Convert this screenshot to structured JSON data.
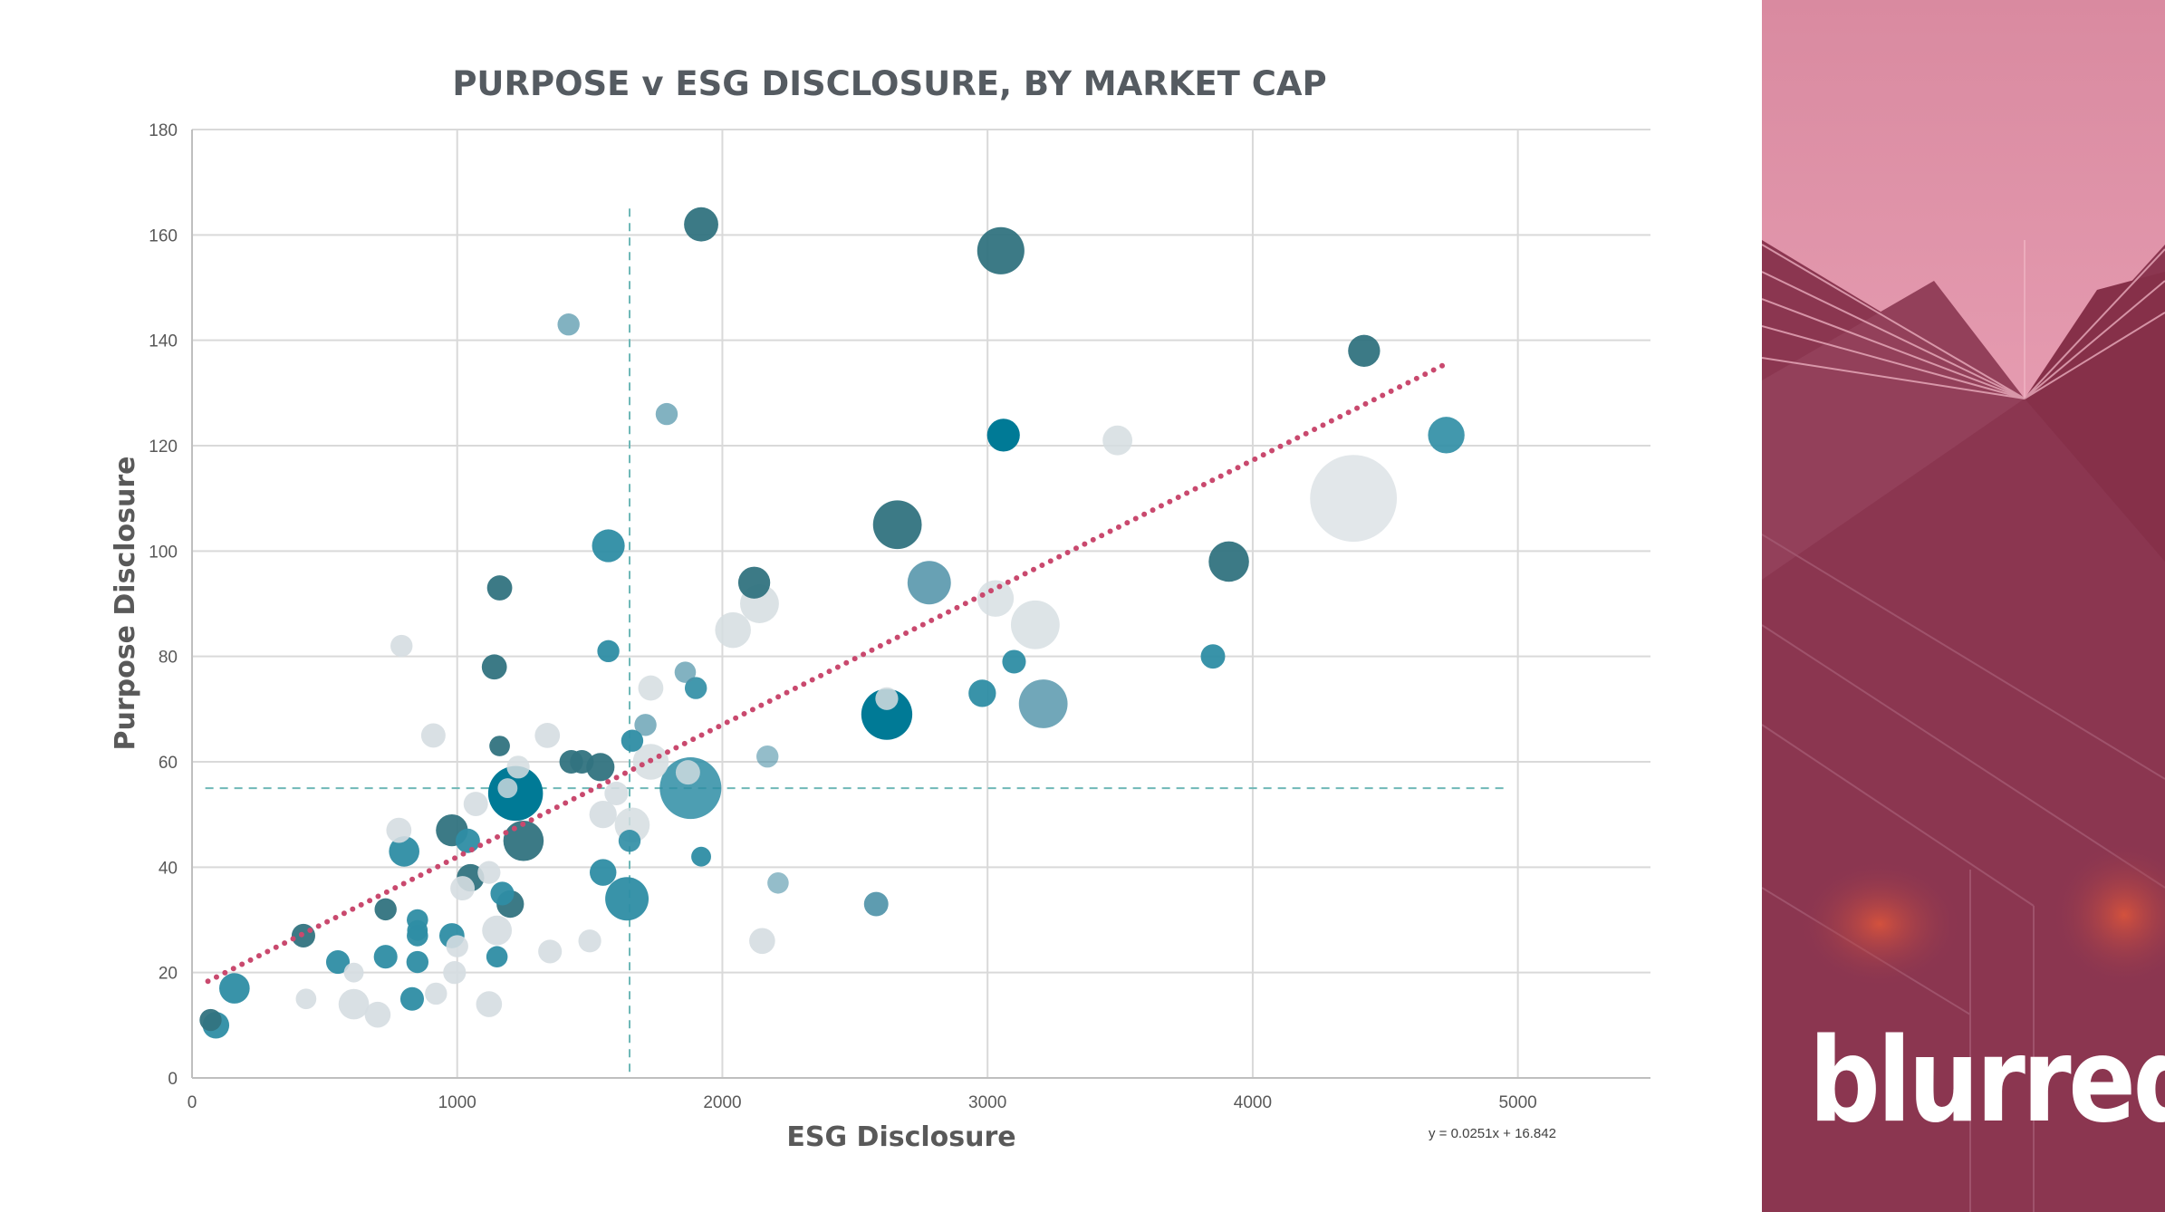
{
  "chart_data": {
    "type": "scatter",
    "subtype": "bubble",
    "title": "PURPOSE v ESG DISCLOSURE, BY MARKET CAP",
    "xlabel": "ESG Disclosure",
    "ylabel": "Purpose Disclosure",
    "xlim": [
      0,
      5500
    ],
    "ylim": [
      0,
      180
    ],
    "xticks": [
      "0",
      "1000",
      "2000",
      "3000",
      "4000",
      "5000"
    ],
    "yticks": [
      "0",
      "20",
      "40",
      "60",
      "80",
      "100",
      "120",
      "140",
      "160",
      "180"
    ],
    "grid": true,
    "legend": "none",
    "trendline": {
      "equation": "y = 0.0251x + 16.842",
      "slope": 0.0251,
      "intercept": 16.842,
      "x_range": [
        60,
        4730
      ],
      "color": "#c9496e",
      "style": "dotted"
    },
    "reference_lines": [
      {
        "orientation": "vertical",
        "x": 1650,
        "y_range": [
          0,
          165
        ],
        "color": "#6fb8b7"
      },
      {
        "orientation": "horizontal",
        "y": 55,
        "x_range": [
          50,
          4950
        ],
        "color": "#6fb8b7"
      }
    ],
    "palette": {
      "dark_teal": "#31737f",
      "teal": "#007a96",
      "mid_teal": "#2e8da4",
      "light_teal": "#4d91a7",
      "pale": "#d5dde1"
    },
    "points": [
      {
        "x": 1920,
        "y": 162,
        "size": 0.26,
        "color": "dark_teal",
        "opacity": 0.95
      },
      {
        "x": 3050,
        "y": 157,
        "size": 0.43,
        "color": "dark_teal",
        "opacity": 0.95
      },
      {
        "x": 1420,
        "y": 143,
        "size": 0.1,
        "color": "light_teal",
        "opacity": 0.7
      },
      {
        "x": 4420,
        "y": 138,
        "size": 0.23,
        "color": "dark_teal",
        "opacity": 0.95
      },
      {
        "x": 1790,
        "y": 126,
        "size": 0.1,
        "color": "light_teal",
        "opacity": 0.7
      },
      {
        "x": 3060,
        "y": 122,
        "size": 0.24,
        "color": "teal",
        "opacity": 1
      },
      {
        "x": 3490,
        "y": 121,
        "size": 0.2,
        "color": "pale",
        "opacity": 0.85
      },
      {
        "x": 4730,
        "y": 122,
        "size": 0.29,
        "color": "mid_teal",
        "opacity": 0.9
      },
      {
        "x": 4380,
        "y": 110,
        "size": 0.95,
        "color": "pale",
        "opacity": 0.7
      },
      {
        "x": 2660,
        "y": 105,
        "size": 0.45,
        "color": "dark_teal",
        "opacity": 0.95
      },
      {
        "x": 1570,
        "y": 101,
        "size": 0.24,
        "color": "mid_teal",
        "opacity": 0.95
      },
      {
        "x": 3910,
        "y": 98,
        "size": 0.34,
        "color": "dark_teal",
        "opacity": 0.95
      },
      {
        "x": 2120,
        "y": 94,
        "size": 0.23,
        "color": "dark_teal",
        "opacity": 0.95
      },
      {
        "x": 2780,
        "y": 94,
        "size": 0.38,
        "color": "light_teal",
        "opacity": 0.85
      },
      {
        "x": 1160,
        "y": 93,
        "size": 0.14,
        "color": "dark_teal",
        "opacity": 0.95
      },
      {
        "x": 3030,
        "y": 91,
        "size": 0.29,
        "color": "pale",
        "opacity": 0.8
      },
      {
        "x": 2140,
        "y": 90,
        "size": 0.32,
        "color": "pale",
        "opacity": 0.85
      },
      {
        "x": 2040,
        "y": 85,
        "size": 0.28,
        "color": "pale",
        "opacity": 0.85
      },
      {
        "x": 3180,
        "y": 86,
        "size": 0.45,
        "color": "pale",
        "opacity": 0.8
      },
      {
        "x": 790,
        "y": 82,
        "size": 0.1,
        "color": "pale",
        "opacity": 0.9
      },
      {
        "x": 1570,
        "y": 81,
        "size": 0.1,
        "color": "mid_teal",
        "opacity": 0.95
      },
      {
        "x": 3850,
        "y": 80,
        "size": 0.13,
        "color": "mid_teal",
        "opacity": 0.95
      },
      {
        "x": 3100,
        "y": 79,
        "size": 0.12,
        "color": "mid_teal",
        "opacity": 0.95
      },
      {
        "x": 1140,
        "y": 78,
        "size": 0.14,
        "color": "dark_teal",
        "opacity": 0.95
      },
      {
        "x": 1860,
        "y": 77,
        "size": 0.09,
        "color": "light_teal",
        "opacity": 0.7
      },
      {
        "x": 1730,
        "y": 74,
        "size": 0.14,
        "color": "pale",
        "opacity": 0.85
      },
      {
        "x": 1900,
        "y": 74,
        "size": 0.1,
        "color": "mid_teal",
        "opacity": 0.9
      },
      {
        "x": 2980,
        "y": 73,
        "size": 0.17,
        "color": "mid_teal",
        "opacity": 0.95
      },
      {
        "x": 3210,
        "y": 71,
        "size": 0.45,
        "color": "light_teal",
        "opacity": 0.8
      },
      {
        "x": 2620,
        "y": 69,
        "size": 0.48,
        "color": "teal",
        "opacity": 1
      },
      {
        "x": 2620,
        "y": 72,
        "size": 0.11,
        "color": "pale",
        "opacity": 0.85
      },
      {
        "x": 1710,
        "y": 67,
        "size": 0.1,
        "color": "light_teal",
        "opacity": 0.7
      },
      {
        "x": 910,
        "y": 65,
        "size": 0.13,
        "color": "pale",
        "opacity": 0.9
      },
      {
        "x": 1340,
        "y": 65,
        "size": 0.14,
        "color": "pale",
        "opacity": 0.9
      },
      {
        "x": 1660,
        "y": 64,
        "size": 0.1,
        "color": "mid_teal",
        "opacity": 0.95
      },
      {
        "x": 1160,
        "y": 63,
        "size": 0.08,
        "color": "dark_teal",
        "opacity": 0.95
      },
      {
        "x": 2170,
        "y": 61,
        "size": 0.1,
        "color": "light_teal",
        "opacity": 0.6
      },
      {
        "x": 1430,
        "y": 60,
        "size": 0.12,
        "color": "dark_teal",
        "opacity": 0.95
      },
      {
        "x": 1470,
        "y": 60,
        "size": 0.12,
        "color": "dark_teal",
        "opacity": 0.95
      },
      {
        "x": 1540,
        "y": 59,
        "size": 0.18,
        "color": "dark_teal",
        "opacity": 0.95
      },
      {
        "x": 1730,
        "y": 60,
        "size": 0.28,
        "color": "pale",
        "opacity": 0.85
      },
      {
        "x": 1880,
        "y": 55,
        "size": 0.62,
        "color": "mid_teal",
        "opacity": 0.85
      },
      {
        "x": 1870,
        "y": 58,
        "size": 0.13,
        "color": "pale",
        "opacity": 0.8
      },
      {
        "x": 1220,
        "y": 54,
        "size": 0.53,
        "color": "teal",
        "opacity": 1
      },
      {
        "x": 1230,
        "y": 59,
        "size": 0.11,
        "color": "pale",
        "opacity": 0.85
      },
      {
        "x": 1190,
        "y": 55,
        "size": 0.07,
        "color": "pale",
        "opacity": 0.8
      },
      {
        "x": 1600,
        "y": 54,
        "size": 0.12,
        "color": "pale",
        "opacity": 0.9
      },
      {
        "x": 1070,
        "y": 52,
        "size": 0.13,
        "color": "pale",
        "opacity": 0.9
      },
      {
        "x": 1660,
        "y": 48,
        "size": 0.27,
        "color": "pale",
        "opacity": 0.85
      },
      {
        "x": 1550,
        "y": 50,
        "size": 0.17,
        "color": "pale",
        "opacity": 0.9
      },
      {
        "x": 1650,
        "y": 45,
        "size": 0.1,
        "color": "mid_teal",
        "opacity": 0.9
      },
      {
        "x": 780,
        "y": 47,
        "size": 0.14,
        "color": "pale",
        "opacity": 0.9
      },
      {
        "x": 980,
        "y": 47,
        "size": 0.23,
        "color": "dark_teal",
        "opacity": 0.95
      },
      {
        "x": 1040,
        "y": 45,
        "size": 0.13,
        "color": "mid_teal",
        "opacity": 0.95
      },
      {
        "x": 1250,
        "y": 45,
        "size": 0.34,
        "color": "dark_teal",
        "opacity": 0.95
      },
      {
        "x": 800,
        "y": 43,
        "size": 0.21,
        "color": "mid_teal",
        "opacity": 0.95
      },
      {
        "x": 1120,
        "y": 39,
        "size": 0.11,
        "color": "pale",
        "opacity": 0.9
      },
      {
        "x": 1550,
        "y": 39,
        "size": 0.16,
        "color": "mid_teal",
        "opacity": 0.95
      },
      {
        "x": 1920,
        "y": 42,
        "size": 0.07,
        "color": "mid_teal",
        "opacity": 0.95
      },
      {
        "x": 1050,
        "y": 38,
        "size": 0.17,
        "color": "dark_teal",
        "opacity": 0.95
      },
      {
        "x": 1020,
        "y": 36,
        "size": 0.13,
        "color": "pale",
        "opacity": 0.9
      },
      {
        "x": 2210,
        "y": 37,
        "size": 0.09,
        "color": "light_teal",
        "opacity": 0.6
      },
      {
        "x": 1170,
        "y": 35,
        "size": 0.12,
        "color": "mid_teal",
        "opacity": 0.95
      },
      {
        "x": 1640,
        "y": 34,
        "size": 0.38,
        "color": "mid_teal",
        "opacity": 0.95
      },
      {
        "x": 1200,
        "y": 33,
        "size": 0.17,
        "color": "dark_teal",
        "opacity": 0.95
      },
      {
        "x": 2580,
        "y": 33,
        "size": 0.13,
        "color": "light_teal",
        "opacity": 0.9
      },
      {
        "x": 730,
        "y": 32,
        "size": 0.1,
        "color": "dark_teal",
        "opacity": 0.95
      },
      {
        "x": 850,
        "y": 30,
        "size": 0.09,
        "color": "mid_teal",
        "opacity": 0.95
      },
      {
        "x": 1150,
        "y": 28,
        "size": 0.2,
        "color": "pale",
        "opacity": 0.9
      },
      {
        "x": 850,
        "y": 28,
        "size": 0.08,
        "color": "mid_teal",
        "opacity": 0.95
      },
      {
        "x": 420,
        "y": 27,
        "size": 0.12,
        "color": "dark_teal",
        "opacity": 0.95
      },
      {
        "x": 850,
        "y": 27,
        "size": 0.09,
        "color": "mid_teal",
        "opacity": 0.95
      },
      {
        "x": 980,
        "y": 27,
        "size": 0.14,
        "color": "mid_teal",
        "opacity": 0.95
      },
      {
        "x": 1500,
        "y": 26,
        "size": 0.11,
        "color": "pale",
        "opacity": 0.9
      },
      {
        "x": 2150,
        "y": 26,
        "size": 0.15,
        "color": "pale",
        "opacity": 0.9
      },
      {
        "x": 1000,
        "y": 25,
        "size": 0.1,
        "color": "pale",
        "opacity": 0.9
      },
      {
        "x": 1350,
        "y": 24,
        "size": 0.12,
        "color": "pale",
        "opacity": 0.9
      },
      {
        "x": 730,
        "y": 23,
        "size": 0.12,
        "color": "mid_teal",
        "opacity": 0.95
      },
      {
        "x": 1150,
        "y": 23,
        "size": 0.09,
        "color": "mid_teal",
        "opacity": 0.95
      },
      {
        "x": 550,
        "y": 22,
        "size": 0.12,
        "color": "mid_teal",
        "opacity": 0.95
      },
      {
        "x": 850,
        "y": 22,
        "size": 0.1,
        "color": "mid_teal",
        "opacity": 0.95
      },
      {
        "x": 610,
        "y": 20,
        "size": 0.07,
        "color": "pale",
        "opacity": 0.9
      },
      {
        "x": 990,
        "y": 20,
        "size": 0.11,
        "color": "pale",
        "opacity": 0.9
      },
      {
        "x": 160,
        "y": 17,
        "size": 0.21,
        "color": "mid_teal",
        "opacity": 0.95
      },
      {
        "x": 920,
        "y": 16,
        "size": 0.1,
        "color": "pale",
        "opacity": 0.9
      },
      {
        "x": 430,
        "y": 15,
        "size": 0.08,
        "color": "pale",
        "opacity": 0.9
      },
      {
        "x": 830,
        "y": 15,
        "size": 0.12,
        "color": "mid_teal",
        "opacity": 0.95
      },
      {
        "x": 610,
        "y": 14,
        "size": 0.21,
        "color": "pale",
        "opacity": 0.9
      },
      {
        "x": 1120,
        "y": 14,
        "size": 0.15,
        "color": "pale",
        "opacity": 0.9
      },
      {
        "x": 700,
        "y": 12,
        "size": 0.15,
        "color": "pale",
        "opacity": 0.9
      },
      {
        "x": 70,
        "y": 11,
        "size": 0.1,
        "color": "dark_teal",
        "opacity": 0.95
      },
      {
        "x": 90,
        "y": 10,
        "size": 0.16,
        "color": "mid_teal",
        "opacity": 0.95
      }
    ]
  },
  "side_panel": {
    "logo_text": "blurred",
    "background_color": "#8d3750",
    "top_tint_color": "#d98aa0"
  }
}
